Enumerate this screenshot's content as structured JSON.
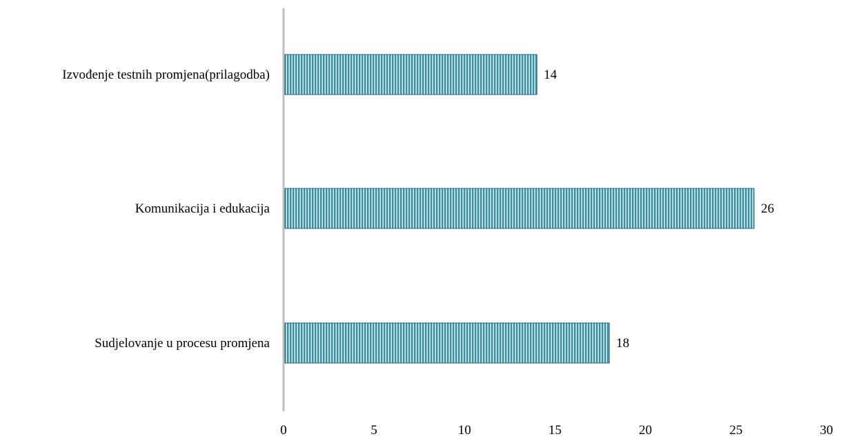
{
  "chart_data": {
    "type": "bar",
    "orientation": "horizontal",
    "title": "",
    "xlabel": "",
    "ylabel": "",
    "categories": [
      "Izvođenje testnih promjena(prilagodba)",
      "Komunikacija i edukacija",
      "Sudjelovanje u procesu promjena"
    ],
    "values": [
      14,
      26,
      18
    ],
    "data_labels": [
      "14",
      "26",
      "18"
    ],
    "xlim": [
      0,
      30
    ],
    "x_ticks": [
      0,
      5,
      10,
      15,
      20,
      25,
      30
    ],
    "x_tick_labels": [
      "0",
      "5",
      "10",
      "15",
      "20",
      "25",
      "30"
    ],
    "grid": false,
    "legend": "none",
    "colors": {
      "bar_fill": "#3f8eaa",
      "bar_stripe": "#ffffff",
      "bar_edge": "#1f5f78",
      "axis": "#bfbfbf",
      "text": "#000000"
    }
  }
}
